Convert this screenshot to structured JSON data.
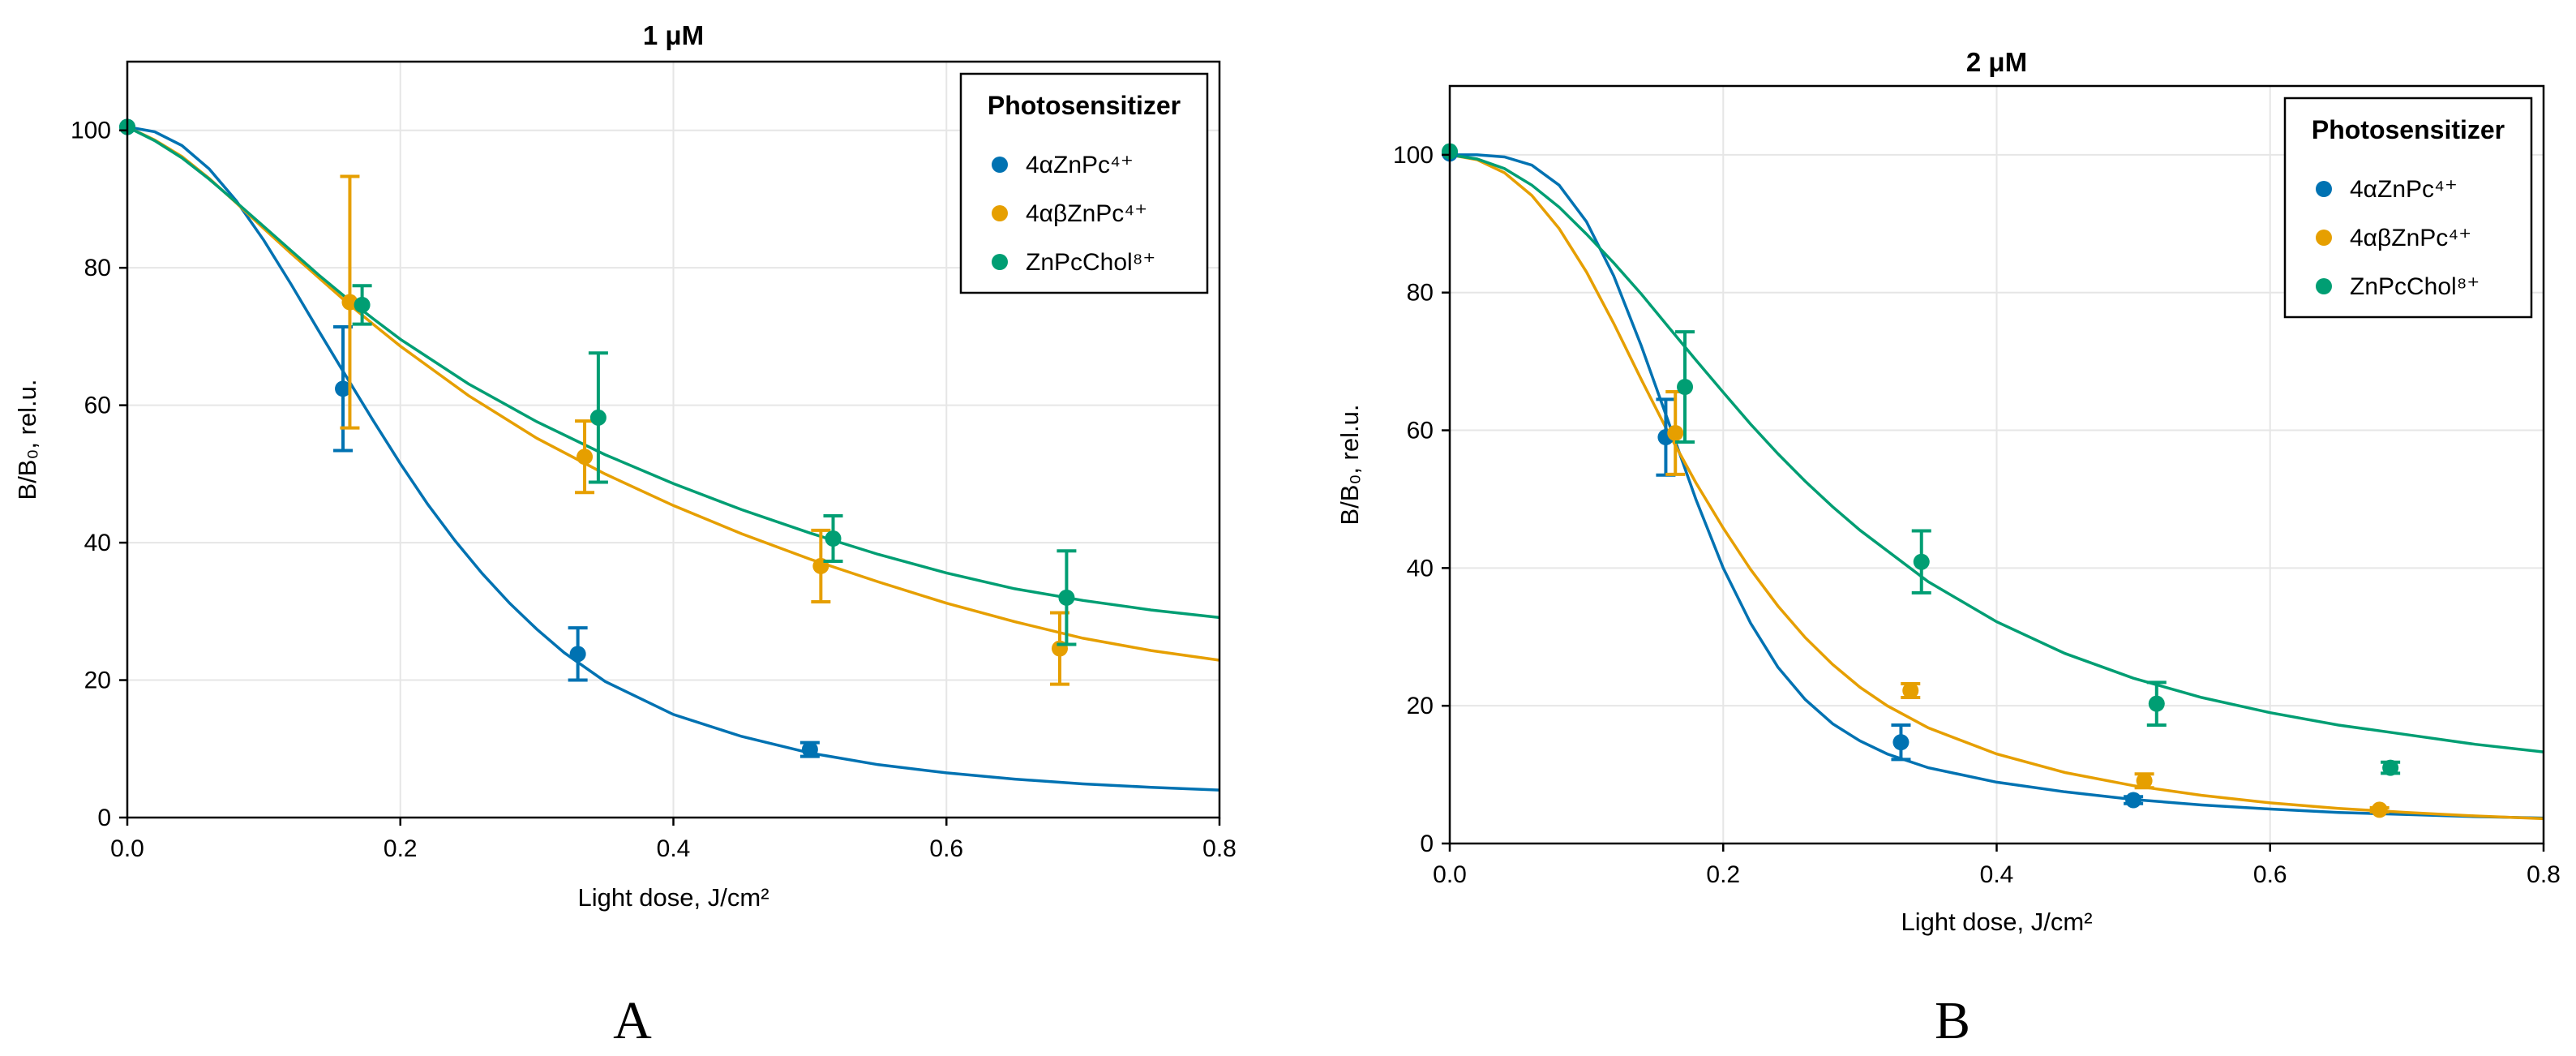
{
  "chart_data": [
    {
      "type": "scatter",
      "title": "1 μM",
      "panel_label": "A",
      "xlabel": "Light dose, J/cm²",
      "ylabel": "B/B₀, rel.u.",
      "xlim": [
        0,
        0.8
      ],
      "ylim": [
        0,
        110
      ],
      "x_ticks": [
        "0.0",
        "0.2",
        "0.4",
        "0.6",
        "0.8"
      ],
      "y_ticks": [
        "0",
        "20",
        "40",
        "60",
        "80",
        "100"
      ],
      "grid": true,
      "legend_title": "Photosensitizer",
      "legend_position": "top-right",
      "series": [
        {
          "name": "4αZnPc⁴⁺",
          "color": "#0072b2",
          "points": [
            {
              "x": 0.0,
              "y": 100.5,
              "err": 0
            },
            {
              "x": 0.158,
              "y": 62.4,
              "err": 9.0
            },
            {
              "x": 0.33,
              "y": 23.8,
              "err": 3.8
            },
            {
              "x": 0.5,
              "y": 9.9,
              "err": 1.0
            }
          ],
          "fit": [
            [
              0,
              100.5
            ],
            [
              0.02,
              99.8
            ],
            [
              0.04,
              97.8
            ],
            [
              0.06,
              94.4
            ],
            [
              0.08,
              89.7
            ],
            [
              0.1,
              84.0
            ],
            [
              0.12,
              77.6
            ],
            [
              0.14,
              70.9
            ],
            [
              0.16,
              64.3
            ],
            [
              0.18,
              57.8
            ],
            [
              0.2,
              51.5
            ],
            [
              0.22,
              45.6
            ],
            [
              0.24,
              40.3
            ],
            [
              0.26,
              35.5
            ],
            [
              0.28,
              31.2
            ],
            [
              0.3,
              27.4
            ],
            [
              0.32,
              24.0
            ],
            [
              0.35,
              19.8
            ],
            [
              0.4,
              15.0
            ],
            [
              0.45,
              11.8
            ],
            [
              0.5,
              9.4
            ],
            [
              0.55,
              7.7
            ],
            [
              0.6,
              6.5
            ],
            [
              0.65,
              5.6
            ],
            [
              0.7,
              4.9
            ],
            [
              0.75,
              4.4
            ],
            [
              0.8,
              4.0
            ]
          ]
        },
        {
          "name": "4αβZnPc⁴⁺",
          "color": "#e69f00",
          "points": [
            {
              "x": 0.163,
              "y": 75.0,
              "err": 18.3
            },
            {
              "x": 0.335,
              "y": 52.5,
              "err": 5.2
            },
            {
              "x": 0.508,
              "y": 36.6,
              "err": 5.2
            },
            {
              "x": 0.683,
              "y": 24.6,
              "err": 5.2
            }
          ],
          "fit": [
            [
              0,
              100.5
            ],
            [
              0.02,
              98.6
            ],
            [
              0.04,
              96.2
            ],
            [
              0.06,
              93.0
            ],
            [
              0.08,
              89.4
            ],
            [
              0.1,
              85.7
            ],
            [
              0.12,
              82.1
            ],
            [
              0.14,
              78.6
            ],
            [
              0.16,
              75.1
            ],
            [
              0.18,
              71.8
            ],
            [
              0.2,
              68.6
            ],
            [
              0.25,
              61.4
            ],
            [
              0.3,
              55.2
            ],
            [
              0.35,
              50.0
            ],
            [
              0.4,
              45.4
            ],
            [
              0.45,
              41.3
            ],
            [
              0.5,
              37.6
            ],
            [
              0.55,
              34.3
            ],
            [
              0.6,
              31.2
            ],
            [
              0.65,
              28.5
            ],
            [
              0.7,
              26.1
            ],
            [
              0.75,
              24.3
            ],
            [
              0.8,
              22.9
            ]
          ]
        },
        {
          "name": "ZnPcChol⁸⁺",
          "color": "#009e73",
          "points": [
            {
              "x": 0.0,
              "y": 100.5,
              "err": 0
            },
            {
              "x": 0.172,
              "y": 74.6,
              "err": 2.8
            },
            {
              "x": 0.345,
              "y": 58.2,
              "err": 9.4
            },
            {
              "x": 0.517,
              "y": 40.6,
              "err": 3.3
            },
            {
              "x": 0.688,
              "y": 32.0,
              "err": 6.8
            }
          ],
          "fit": [
            [
              0,
              100.5
            ],
            [
              0.02,
              98.5
            ],
            [
              0.04,
              96.0
            ],
            [
              0.06,
              92.9
            ],
            [
              0.08,
              89.5
            ],
            [
              0.1,
              86.0
            ],
            [
              0.12,
              82.5
            ],
            [
              0.14,
              79.0
            ],
            [
              0.16,
              75.7
            ],
            [
              0.18,
              72.6
            ],
            [
              0.2,
              69.6
            ],
            [
              0.25,
              63.1
            ],
            [
              0.3,
              57.6
            ],
            [
              0.35,
              52.8
            ],
            [
              0.4,
              48.6
            ],
            [
              0.45,
              44.8
            ],
            [
              0.5,
              41.4
            ],
            [
              0.55,
              38.3
            ],
            [
              0.6,
              35.6
            ],
            [
              0.65,
              33.3
            ],
            [
              0.7,
              31.6
            ],
            [
              0.75,
              30.2
            ],
            [
              0.8,
              29.1
            ]
          ]
        }
      ]
    },
    {
      "type": "scatter",
      "title": "2 μM",
      "panel_label": "B",
      "xlabel": "Light dose, J/cm²",
      "ylabel": "B/B₀, rel.u.",
      "xlim": [
        0,
        0.8
      ],
      "ylim": [
        0,
        110
      ],
      "x_ticks": [
        "0.0",
        "0.2",
        "0.4",
        "0.6",
        "0.8"
      ],
      "y_ticks": [
        "0",
        "20",
        "40",
        "60",
        "80",
        "100"
      ],
      "grid": true,
      "legend_title": "Photosensitizer",
      "legend_position": "top-right",
      "series": [
        {
          "name": "4αZnPc⁴⁺",
          "color": "#0072b2",
          "points": [
            {
              "x": 0.0,
              "y": 100.2,
              "err": 0
            },
            {
              "x": 0.158,
              "y": 59.0,
              "err": 5.5
            },
            {
              "x": 0.33,
              "y": 14.7,
              "err": 2.5
            },
            {
              "x": 0.5,
              "y": 6.3,
              "err": 0.5
            }
          ],
          "fit": [
            [
              0,
              100.0
            ],
            [
              0.02,
              100.0
            ],
            [
              0.04,
              99.7
            ],
            [
              0.06,
              98.5
            ],
            [
              0.08,
              95.6
            ],
            [
              0.1,
              90.3
            ],
            [
              0.12,
              82.4
            ],
            [
              0.14,
              72.3
            ],
            [
              0.16,
              61.2
            ],
            [
              0.18,
              50.0
            ],
            [
              0.2,
              40.0
            ],
            [
              0.22,
              32.0
            ],
            [
              0.24,
              25.6
            ],
            [
              0.26,
              20.9
            ],
            [
              0.28,
              17.4
            ],
            [
              0.3,
              14.9
            ],
            [
              0.32,
              13.0
            ],
            [
              0.35,
              11.0
            ],
            [
              0.4,
              8.9
            ],
            [
              0.45,
              7.5
            ],
            [
              0.5,
              6.4
            ],
            [
              0.55,
              5.6
            ],
            [
              0.6,
              5.0
            ],
            [
              0.65,
              4.5
            ],
            [
              0.7,
              4.2
            ],
            [
              0.75,
              3.9
            ],
            [
              0.8,
              3.7
            ]
          ]
        },
        {
          "name": "4αβZnPc⁴⁺",
          "color": "#e69f00",
          "points": [
            {
              "x": 0.165,
              "y": 59.6,
              "err": 6.0
            },
            {
              "x": 0.337,
              "y": 22.2,
              "err": 1.0
            },
            {
              "x": 0.508,
              "y": 9.1,
              "err": 1.0
            },
            {
              "x": 0.68,
              "y": 4.9,
              "err": 0.3
            }
          ],
          "fit": [
            [
              0,
              100.0
            ],
            [
              0.02,
              99.3
            ],
            [
              0.04,
              97.4
            ],
            [
              0.06,
              94.1
            ],
            [
              0.08,
              89.3
            ],
            [
              0.1,
              83.0
            ],
            [
              0.12,
              75.5
            ],
            [
              0.14,
              67.4
            ],
            [
              0.16,
              59.6
            ],
            [
              0.18,
              52.4
            ],
            [
              0.2,
              45.8
            ],
            [
              0.22,
              39.8
            ],
            [
              0.24,
              34.5
            ],
            [
              0.26,
              29.9
            ],
            [
              0.28,
              26.0
            ],
            [
              0.3,
              22.7
            ],
            [
              0.32,
              20.0
            ],
            [
              0.35,
              16.8
            ],
            [
              0.4,
              13.0
            ],
            [
              0.45,
              10.3
            ],
            [
              0.5,
              8.4
            ],
            [
              0.55,
              7.0
            ],
            [
              0.6,
              5.9
            ],
            [
              0.65,
              5.1
            ],
            [
              0.7,
              4.5
            ],
            [
              0.75,
              4.0
            ],
            [
              0.8,
              3.6
            ]
          ]
        },
        {
          "name": "ZnPcChol⁸⁺",
          "color": "#009e73",
          "points": [
            {
              "x": 0.0,
              "y": 100.5,
              "err": 0
            },
            {
              "x": 0.172,
              "y": 66.3,
              "err": 8.0
            },
            {
              "x": 0.345,
              "y": 40.9,
              "err": 4.5
            },
            {
              "x": 0.517,
              "y": 20.3,
              "err": 3.1
            },
            {
              "x": 0.688,
              "y": 11.0,
              "err": 0.8
            }
          ],
          "fit": [
            [
              0,
              100.0
            ],
            [
              0.02,
              99.4
            ],
            [
              0.04,
              98.0
            ],
            [
              0.06,
              95.6
            ],
            [
              0.08,
              92.4
            ],
            [
              0.1,
              88.5
            ],
            [
              0.12,
              84.3
            ],
            [
              0.14,
              79.8
            ],
            [
              0.16,
              75.0
            ],
            [
              0.18,
              70.2
            ],
            [
              0.2,
              65.5
            ],
            [
              0.22,
              60.9
            ],
            [
              0.24,
              56.6
            ],
            [
              0.26,
              52.6
            ],
            [
              0.28,
              48.9
            ],
            [
              0.3,
              45.5
            ],
            [
              0.35,
              38.0
            ],
            [
              0.4,
              32.2
            ],
            [
              0.45,
              27.6
            ],
            [
              0.5,
              24.0
            ],
            [
              0.55,
              21.2
            ],
            [
              0.6,
              19.0
            ],
            [
              0.65,
              17.2
            ],
            [
              0.7,
              15.8
            ],
            [
              0.75,
              14.4
            ],
            [
              0.8,
              13.3
            ]
          ]
        }
      ]
    }
  ]
}
